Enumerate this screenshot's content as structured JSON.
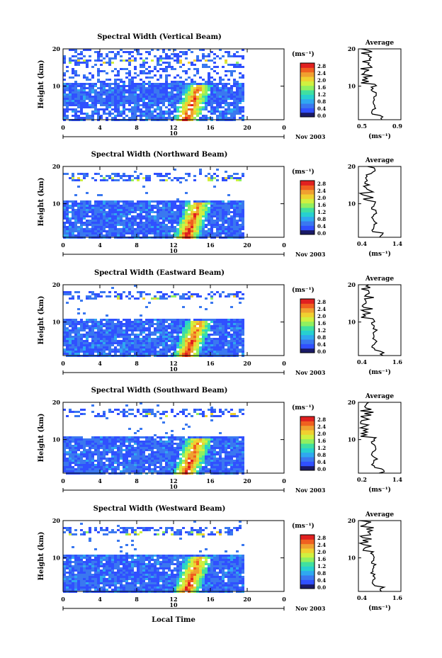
{
  "figure": {
    "xlabel_bottom": "Local Time",
    "date_label": "Nov 2003",
    "x_range_label": "10",
    "colorbar_unit": "(ms⁻¹)",
    "average_title": "Average",
    "average_unit": "(ms⁻¹)",
    "colormap": [
      "#1a1a66",
      "#3050ff",
      "#3a78f0",
      "#2fa8f0",
      "#27d0d0",
      "#40e0a0",
      "#90f060",
      "#d0f040",
      "#f0d030",
      "#f0a030",
      "#f06020",
      "#e02020"
    ]
  },
  "chart_data": [
    {
      "type": "heatmap",
      "title": "Spectral Width (Vertical Beam)",
      "xlabel": "",
      "ylabel": "Height (km)",
      "xlim": [
        0,
        24
      ],
      "ylim": [
        1,
        20
      ],
      "xticks": [
        "0",
        "4",
        "8",
        "12",
        "16",
        "20",
        "0"
      ],
      "yticks": [
        "10",
        "20"
      ],
      "colorbar": {
        "ticks": [
          "0.0",
          "0.4",
          "0.8",
          "1.2",
          "1.6",
          "2.0",
          "2.4",
          "2.8"
        ],
        "range": [
          0,
          2.8
        ]
      },
      "average": {
        "xlim": [
          0.5,
          0.9
        ],
        "xticks": [
          "0.5",
          "0.9"
        ],
        "yticks": [
          "10",
          "20"
        ]
      }
    },
    {
      "type": "heatmap",
      "title": "Spectral Width (Northward Beam)",
      "xlabel": "",
      "ylabel": "Height (km)",
      "xlim": [
        0,
        24
      ],
      "ylim": [
        1,
        20
      ],
      "xticks": [
        "0",
        "4",
        "8",
        "12",
        "16",
        "20",
        "0"
      ],
      "yticks": [
        "10",
        "20"
      ],
      "colorbar": {
        "ticks": [
          "0.0",
          "0.4",
          "0.8",
          "1.2",
          "1.6",
          "2.0",
          "2.4",
          "2.8"
        ],
        "range": [
          0,
          2.8
        ]
      },
      "average": {
        "xlim": [
          0.4,
          1.4
        ],
        "xticks": [
          "0.4",
          "1.4"
        ],
        "yticks": [
          "10",
          "20"
        ]
      }
    },
    {
      "type": "heatmap",
      "title": "Spectral Width (Eastward Beam)",
      "xlabel": "",
      "ylabel": "Height (km)",
      "xlim": [
        0,
        24
      ],
      "ylim": [
        1,
        20
      ],
      "xticks": [
        "0",
        "4",
        "8",
        "12",
        "16",
        "20",
        "0"
      ],
      "yticks": [
        "10",
        "20"
      ],
      "colorbar": {
        "ticks": [
          "0.0",
          "0.4",
          "0.8",
          "1.2",
          "1.6",
          "2.0",
          "2.4",
          "2.8"
        ],
        "range": [
          0,
          2.8
        ]
      },
      "average": {
        "xlim": [
          0.4,
          1.6
        ],
        "xticks": [
          "0.4",
          "1.6"
        ],
        "yticks": [
          "10",
          "20"
        ]
      }
    },
    {
      "type": "heatmap",
      "title": "Spectral Width (Southward Beam)",
      "xlabel": "",
      "ylabel": "Height (km)",
      "xlim": [
        0,
        24
      ],
      "ylim": [
        1,
        20
      ],
      "xticks": [
        "0",
        "4",
        "8",
        "12",
        "16",
        "20",
        "0"
      ],
      "yticks": [
        "10",
        "20"
      ],
      "colorbar": {
        "ticks": [
          "0.0",
          "0.4",
          "0.8",
          "1.2",
          "1.6",
          "2.0",
          "2.4",
          "2.8"
        ],
        "range": [
          0,
          2.8
        ]
      },
      "average": {
        "xlim": [
          0.2,
          1.4
        ],
        "xticks": [
          "0.2",
          "1.4"
        ],
        "yticks": [
          "10",
          "20"
        ]
      }
    },
    {
      "type": "heatmap",
      "title": "Spectral Width (Westward Beam)",
      "xlabel": "",
      "ylabel": "Height (km)",
      "xlim": [
        0,
        24
      ],
      "ylim": [
        1,
        20
      ],
      "xticks": [
        "0",
        "4",
        "8",
        "12",
        "16",
        "20",
        "0"
      ],
      "yticks": [
        "10",
        "20"
      ],
      "colorbar": {
        "ticks": [
          "0.0",
          "0.4",
          "0.8",
          "1.2",
          "1.6",
          "2.0",
          "2.4",
          "2.8"
        ],
        "range": [
          0,
          2.8
        ]
      },
      "average": {
        "xlim": [
          0.4,
          1.6
        ],
        "xticks": [
          "0.4",
          "1.6"
        ],
        "yticks": [
          "10",
          "20"
        ]
      }
    }
  ]
}
